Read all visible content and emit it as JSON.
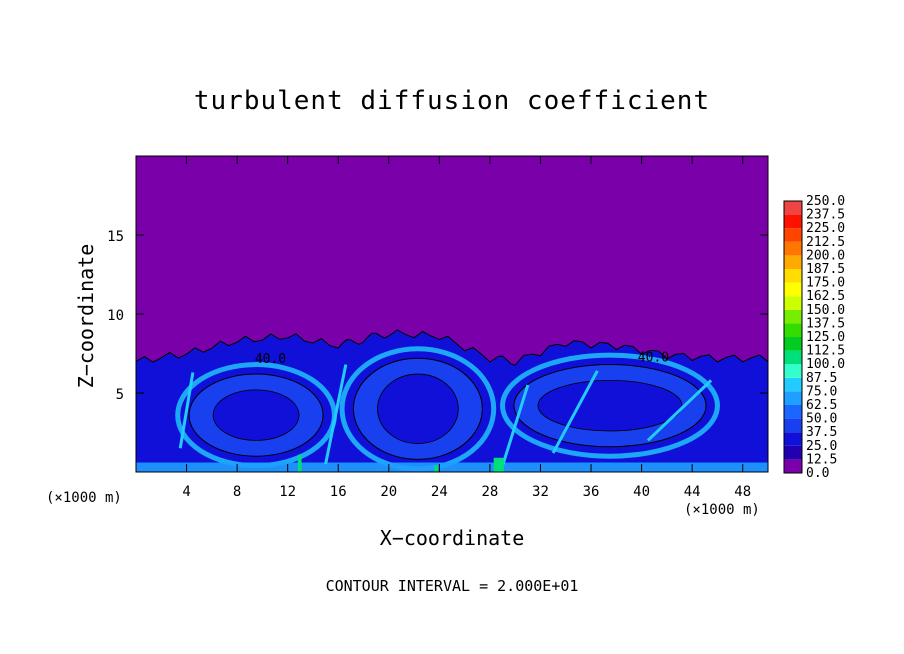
{
  "chart_data": {
    "type": "heatmap",
    "title": "turbulent diffusion coefficient",
    "xlabel": "X−coordinate",
    "ylabel": "Z−coordinate",
    "x_unit_left": "(×1000 m)",
    "x_unit_right": "(×1000 m)",
    "footnote": "CONTOUR INTERVAL = 2.000E+01",
    "xlim": [
      0,
      50
    ],
    "ylim": [
      0,
      20
    ],
    "x_ticks": [
      4,
      8,
      12,
      16,
      20,
      24,
      28,
      32,
      36,
      40,
      44,
      48
    ],
    "x_tick_labels": [
      "4",
      "8",
      "12",
      "16",
      "20",
      "24",
      "28",
      "32",
      "36",
      "40",
      "44",
      "48"
    ],
    "y_ticks": [
      5,
      10,
      15
    ],
    "y_tick_labels": [
      "5",
      "10",
      "15"
    ],
    "contour_labels": [
      {
        "text": "40.0",
        "x": 9.4,
        "z": 6.9
      },
      {
        "text": "40.0",
        "x": 39.7,
        "z": 7.0
      }
    ],
    "colorbar": {
      "levels": [
        0.0,
        12.5,
        25.0,
        37.5,
        50.0,
        62.5,
        75.0,
        87.5,
        100.0,
        112.5,
        125.0,
        137.5,
        150.0,
        162.5,
        175.0,
        187.5,
        200.0,
        212.5,
        225.0,
        237.5,
        250.0
      ],
      "labels": [
        "0.0",
        "12.5",
        "25.0",
        "37.5",
        "50.0",
        "62.5",
        "75.0",
        "87.5",
        "100.0",
        "112.5",
        "125.0",
        "137.5",
        "150.0",
        "162.5",
        "175.0",
        "187.5",
        "200.0",
        "212.5",
        "225.0",
        "237.5",
        "250.0"
      ],
      "colors": [
        "#7a00aa",
        "#2200b0",
        "#1010d8",
        "#1840ee",
        "#1a66ff",
        "#1f9fff",
        "#22ccff",
        "#33ffcc",
        "#00e07a",
        "#00cc22",
        "#33dd00",
        "#77ee00",
        "#ccff00",
        "#ffff00",
        "#ffdd00",
        "#ffaa00",
        "#ff7700",
        "#ff4400",
        "#ff1100",
        "#ee4444"
      ]
    },
    "background_color": "#7a00aa",
    "turbulent_layer_top_approx": [
      [
        0,
        7.0
      ],
      [
        4,
        7.5
      ],
      [
        8,
        8.3
      ],
      [
        12,
        8.6
      ],
      [
        16,
        8.0
      ],
      [
        18,
        8.4
      ],
      [
        20,
        8.8
      ],
      [
        24,
        8.6
      ],
      [
        28,
        7.2
      ],
      [
        30,
        7.0
      ],
      [
        34,
        8.2
      ],
      [
        38,
        8.0
      ],
      [
        42,
        7.4
      ],
      [
        46,
        7.2
      ],
      [
        50,
        7.2
      ]
    ]
  }
}
